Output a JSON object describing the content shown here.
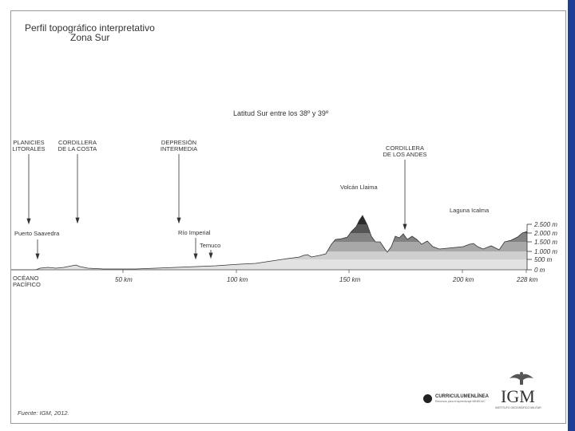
{
  "header": {
    "title": "Perfil topográfico interpretativo",
    "subtitle": "Zona Sur",
    "latitude": "Latitud Sur entre los 38º y 39º"
  },
  "regions": {
    "planicies": [
      "PLANICIES",
      "LITORALES"
    ],
    "cordillera_costa": [
      "CORDILLERA",
      "DE LA COSTA"
    ],
    "depresion": [
      "DEPRESIÓN",
      "INTERMEDIA"
    ],
    "cordillera_andes": [
      "CORDILLERA",
      "DE LOS ANDES"
    ]
  },
  "places": {
    "volcan": "Volcán Llaima",
    "laguna": "Laguna Icalma",
    "puerto": "Puerto Saavedra",
    "rio": "Río Imperial",
    "temuco": "Temuco"
  },
  "ocean": [
    "OCÉANO",
    "PACÍFICO"
  ],
  "axis": {
    "x_ticks": [
      "50 km",
      "100 km",
      "150 km",
      "200 km",
      "228 km"
    ],
    "elevation_ticks": [
      "2.500 m",
      "2.000 m",
      "1.500 m",
      "1.000 m",
      "500 m",
      "0 m"
    ]
  },
  "footer": {
    "source": "Fuente: IGM, 2012.",
    "curriculum_name": "CURRICULUMENLÍNEA",
    "curriculum_sub": "Recursos para el aprendizaje MINEDUC",
    "igm_name": "IGM",
    "igm_sub": "INSTITUTO GEOGRÁFICO MILITAR"
  }
}
